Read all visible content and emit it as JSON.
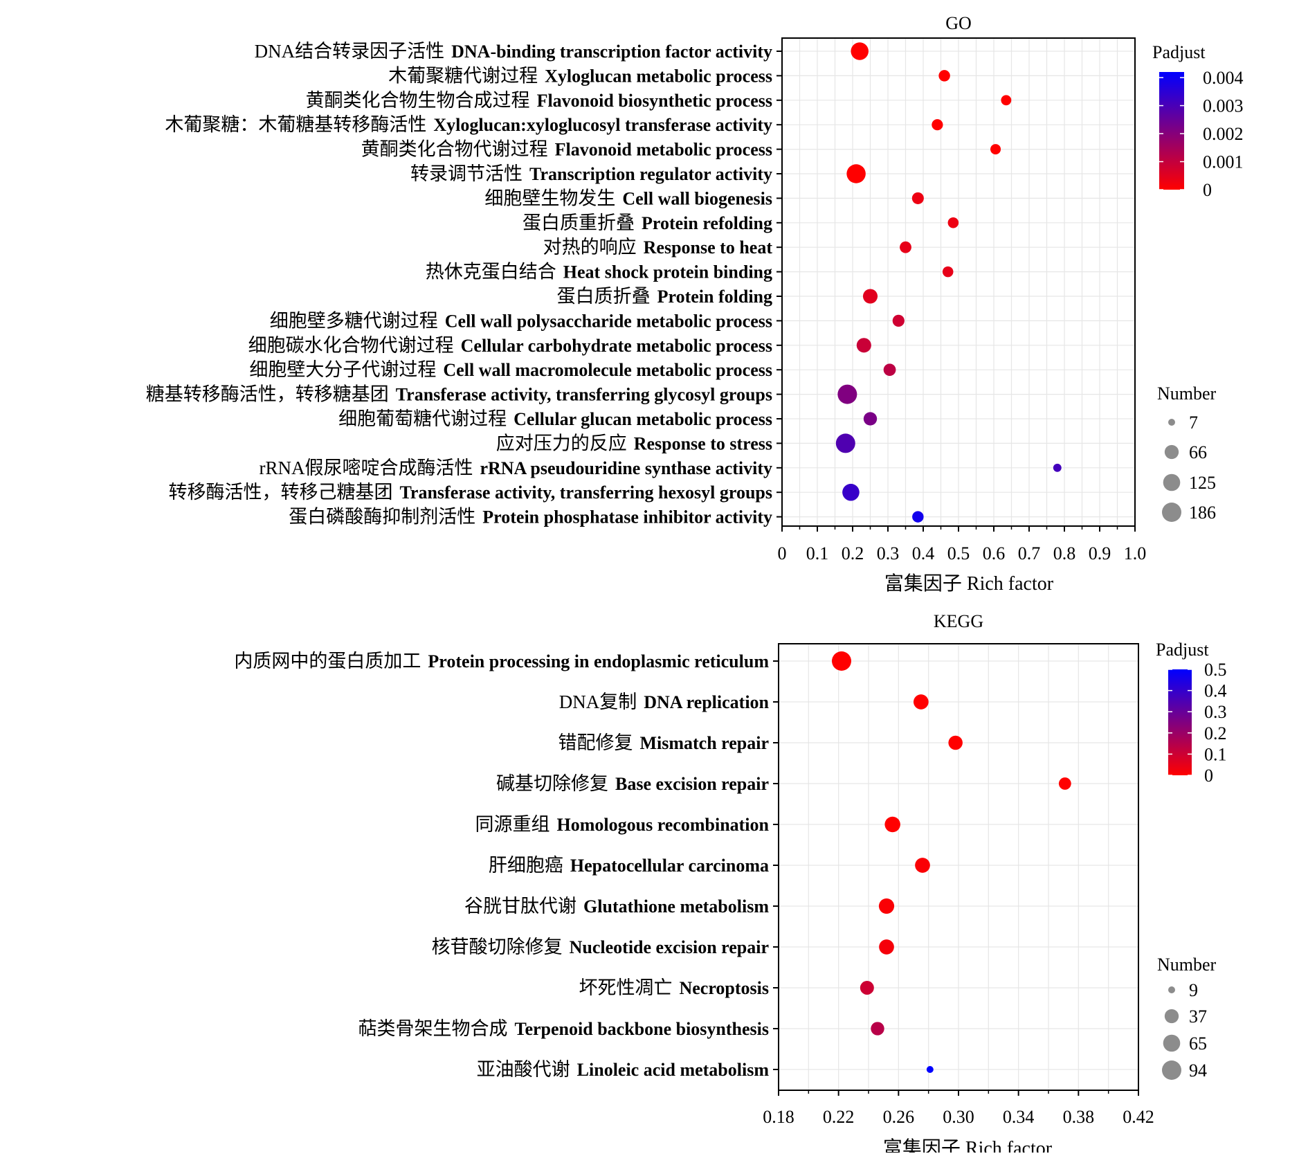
{
  "chart_data": [
    {
      "type": "scatter",
      "title": "GO",
      "xlabel": "富集因子  Rich factor",
      "xlim": [
        0,
        1.0
      ],
      "xticks": [
        "0",
        "0.1",
        "0.2",
        "0.3",
        "0.4",
        "0.5",
        "0.6",
        "0.7",
        "0.8",
        "0.9",
        "1.0"
      ],
      "xtick_values": [
        0,
        0.1,
        0.2,
        0.3,
        0.4,
        0.5,
        0.6,
        0.7,
        0.8,
        0.9,
        1.0
      ],
      "grid": true,
      "points": [
        {
          "label_zh": "DNA结合转录因子活性",
          "label_en": "DNA-binding transcription factor activity",
          "x": 0.22,
          "padjust": 0.0,
          "number": 140
        },
        {
          "label_zh": "木葡聚糖代谢过程",
          "label_en": "Xyloglucan metabolic process",
          "x": 0.46,
          "padjust": 0.0,
          "number": 30
        },
        {
          "label_zh": "黄酮类化合物生物合成过程",
          "label_en": "Flavonoid biosynthetic process",
          "x": 0.635,
          "padjust": 0.0,
          "number": 20
        },
        {
          "label_zh": "木葡聚糖：木葡糖基转移酶活性",
          "label_en": "Xyloglucan:xyloglucosyl transferase activity",
          "x": 0.44,
          "padjust": 0.0,
          "number": 28
        },
        {
          "label_zh": "黄酮类化合物代谢过程",
          "label_en": "Flavonoid metabolic process",
          "x": 0.605,
          "padjust": 0.0,
          "number": 21
        },
        {
          "label_zh": "转录调节活性",
          "label_en": "Transcription regulator activity",
          "x": 0.21,
          "padjust": 0.0,
          "number": 175
        },
        {
          "label_zh": "细胞壁生物发生",
          "label_en": "Cell wall biogenesis",
          "x": 0.385,
          "padjust": 0.0003,
          "number": 35
        },
        {
          "label_zh": "蛋白质重折叠",
          "label_en": "Protein refolding",
          "x": 0.485,
          "padjust": 0.0003,
          "number": 24
        },
        {
          "label_zh": "对热的响应",
          "label_en": "Response to heat",
          "x": 0.35,
          "padjust": 0.0004,
          "number": 33
        },
        {
          "label_zh": "热休克蛋白结合",
          "label_en": "Heat shock protein binding",
          "x": 0.47,
          "padjust": 0.0004,
          "number": 24
        },
        {
          "label_zh": "蛋白质折叠",
          "label_en": "Protein folding",
          "x": 0.25,
          "padjust": 0.0005,
          "number": 75
        },
        {
          "label_zh": "细胞壁多糖代谢过程",
          "label_en": "Cell wall polysaccharide metabolic process",
          "x": 0.33,
          "padjust": 0.0008,
          "number": 36
        },
        {
          "label_zh": "细胞碳水化合物代谢过程",
          "label_en": "Cellular carbohydrate metabolic process",
          "x": 0.232,
          "padjust": 0.0009,
          "number": 75
        },
        {
          "label_zh": "细胞壁大分子代谢过程",
          "label_en": "Cell wall macromolecule metabolic process",
          "x": 0.305,
          "padjust": 0.0011,
          "number": 40
        },
        {
          "label_zh": "糖基转移酶活性，转移糖基团",
          "label_en": "Transferase activity, transferring glycosyl groups",
          "x": 0.185,
          "padjust": 0.0021,
          "number": 186
        },
        {
          "label_zh": "细胞葡萄糖代谢过程",
          "label_en": "Cellular glucan metabolic process",
          "x": 0.25,
          "padjust": 0.0022,
          "number": 55
        },
        {
          "label_zh": "应对压力的反应",
          "label_en": "Response to stress",
          "x": 0.18,
          "padjust": 0.0029,
          "number": 186
        },
        {
          "label_zh": "rRNA假尿嘧啶合成酶活性",
          "label_en": "rRNA pseudouridine synthase activity",
          "x": 0.78,
          "padjust": 0.0031,
          "number": 9
        },
        {
          "label_zh": "转移酶活性，转移己糖基团",
          "label_en": "Transferase activity, transferring hexosyl groups",
          "x": 0.195,
          "padjust": 0.0033,
          "number": 125
        },
        {
          "label_zh": "蛋白磷酸酶抑制剂活性",
          "label_en": "Protein phosphatase inhibitor activity",
          "x": 0.385,
          "padjust": 0.0039,
          "number": 30
        }
      ],
      "color_legend": {
        "title": "Padjust",
        "ticks": [
          "0.004",
          "0.003",
          "0.002",
          "0.001",
          "0"
        ],
        "tick_values": [
          0.004,
          0.003,
          0.002,
          0.001,
          0
        ],
        "min": 0,
        "max": 0.0042,
        "colors": [
          "#ff0000",
          "#0000ff"
        ]
      },
      "size_legend": {
        "title": "Number",
        "ticks": [
          "7",
          "66",
          "125",
          "186"
        ],
        "tick_values": [
          7,
          66,
          125,
          186
        ]
      }
    },
    {
      "type": "scatter",
      "title": "KEGG",
      "xlabel": "富集因子  Rich factor",
      "xlim": [
        0.18,
        0.42
      ],
      "xticks": [
        "0.18",
        "0.22",
        "0.26",
        "0.30",
        "0.34",
        "0.38",
        "0.42"
      ],
      "xtick_values": [
        0.18,
        0.22,
        0.26,
        0.3,
        0.34,
        0.38,
        0.42
      ],
      "grid": true,
      "points": [
        {
          "label_zh": "内质网中的蛋白质加工",
          "label_en": "Protein processing in endoplasmic reticulum",
          "x": 0.222,
          "padjust": 0.0,
          "number": 94
        },
        {
          "label_zh": "DNA复制",
          "label_en": "DNA replication",
          "x": 0.275,
          "padjust": 0.0,
          "number": 45
        },
        {
          "label_zh": "错配修复",
          "label_en": "Mismatch repair",
          "x": 0.298,
          "padjust": 0.0,
          "number": 38
        },
        {
          "label_zh": "碱基切除修复",
          "label_en": "Base excision repair",
          "x": 0.371,
          "padjust": 0.0,
          "number": 25
        },
        {
          "label_zh": "同源重组",
          "label_en": "Homologous recombination",
          "x": 0.256,
          "padjust": 0.0,
          "number": 50
        },
        {
          "label_zh": "肝细胞癌",
          "label_en": "Hepatocellular carcinoma",
          "x": 0.276,
          "padjust": 0.01,
          "number": 45
        },
        {
          "label_zh": "谷胱甘肽代谢",
          "label_en": "Glutathione metabolism",
          "x": 0.252,
          "padjust": 0.01,
          "number": 48
        },
        {
          "label_zh": "核苷酸切除修复",
          "label_en": "Nucleotide excision repair",
          "x": 0.252,
          "padjust": 0.02,
          "number": 45
        },
        {
          "label_zh": "坏死性凋亡",
          "label_en": "Necroptosis",
          "x": 0.239,
          "padjust": 0.1,
          "number": 35
        },
        {
          "label_zh": "萜类骨架生物合成",
          "label_en": "Terpenoid backbone biosynthesis",
          "x": 0.246,
          "padjust": 0.14,
          "number": 32
        },
        {
          "label_zh": "亚油酸代谢",
          "label_en": "Linoleic acid metabolism",
          "x": 0.281,
          "padjust": 0.5,
          "number": 9
        }
      ],
      "color_legend": {
        "title": "Padjust",
        "ticks": [
          "0.5",
          "0.4",
          "0.3",
          "0.2",
          "0.1",
          "0"
        ],
        "tick_values": [
          0.5,
          0.4,
          0.3,
          0.2,
          0.1,
          0
        ],
        "min": 0,
        "max": 0.5,
        "colors": [
          "#ff0000",
          "#0000ff"
        ]
      },
      "size_legend": {
        "title": "Number",
        "ticks": [
          "9",
          "37",
          "65",
          "94"
        ],
        "tick_values": [
          9,
          37,
          65,
          94
        ]
      }
    }
  ]
}
